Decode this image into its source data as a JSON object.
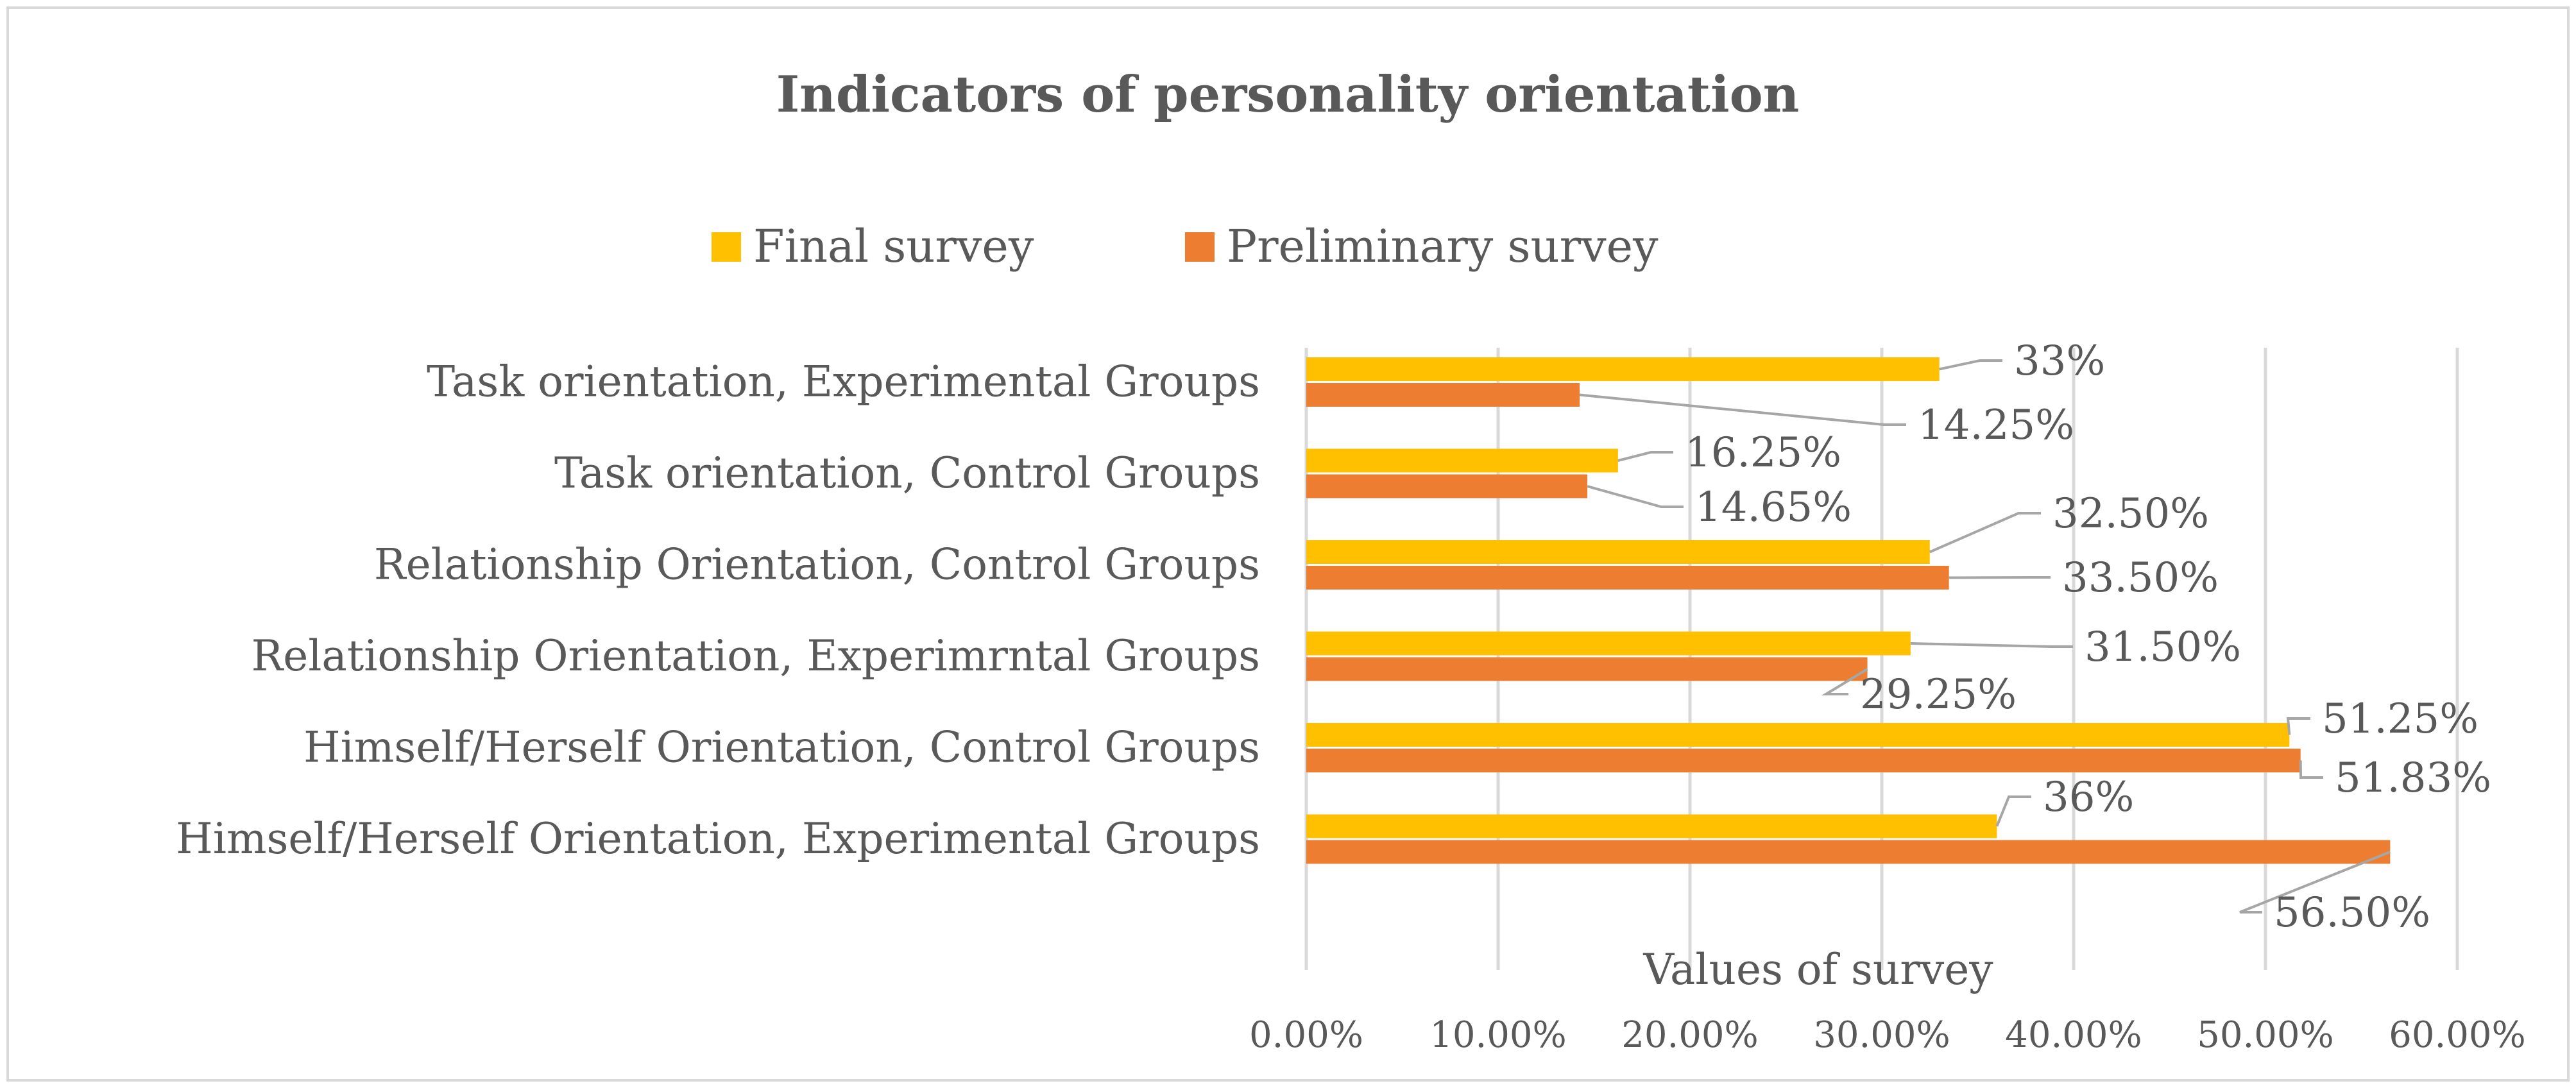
{
  "chart_data": {
    "type": "bar",
    "orientation": "horizontal",
    "title": "Indicators of personality orientation",
    "xlabel": "Values of survey",
    "ylabel": "",
    "xlim": [
      0,
      60
    ],
    "tick_labels": [
      "0.00%",
      "10.00%",
      "20.00%",
      "30.00%",
      "40.00%",
      "50.00%",
      "60.00%"
    ],
    "grid": true,
    "legend_position": "top",
    "categories": [
      "Task orientation, Experimental Groups",
      "Task orientation, Control Groups",
      "Relationship Orientation, Control Groups",
      "Relationship Orientation, Experimrntal Groups",
      "Himself/Herself Orientation, Control Groups",
      "Himself/Herself Orientation, Experimental Groups"
    ],
    "series": [
      {
        "name": "Final survey",
        "color": "#FFC000",
        "values": [
          33,
          16.25,
          32.5,
          31.5,
          51.25,
          36
        ],
        "labels": [
          "33%",
          "16.25%",
          "32.50%",
          "31.50%",
          "51.25%",
          "36%"
        ]
      },
      {
        "name": "Preliminary survey",
        "color": "#ED7D31",
        "values": [
          14.25,
          14.65,
          33.5,
          29.25,
          51.83,
          56.5
        ],
        "labels": [
          "14.25%",
          "14.65%",
          "33.50%",
          "29.25%",
          "51.83%",
          "56.50%"
        ]
      }
    ]
  }
}
